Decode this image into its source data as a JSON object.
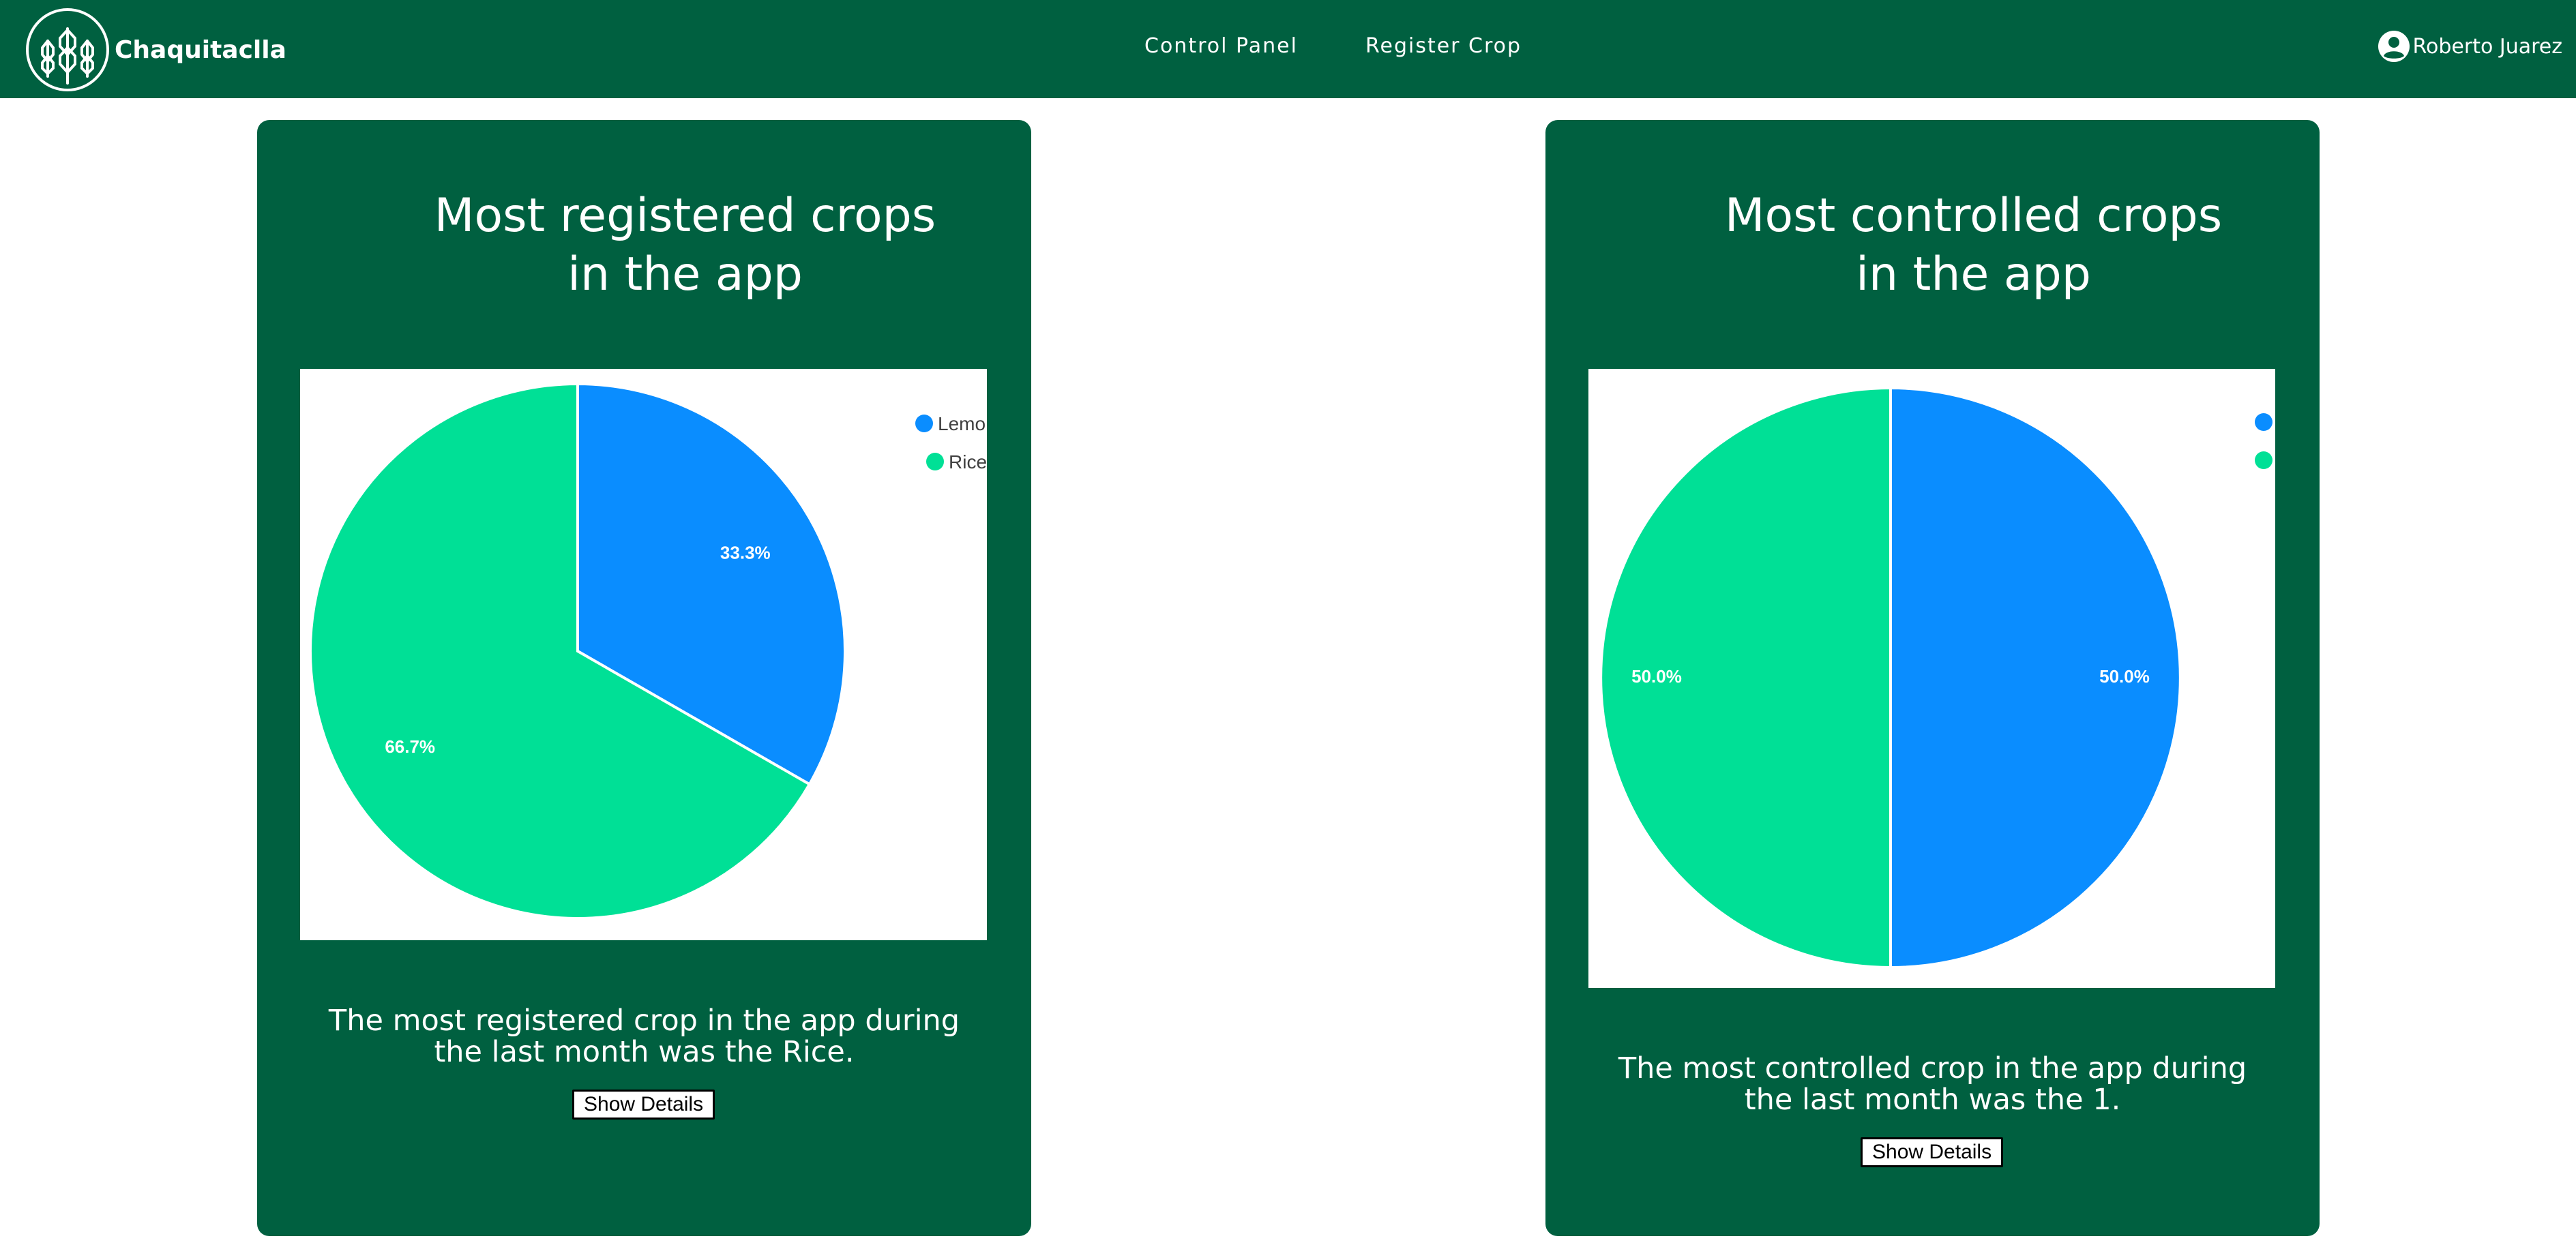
{
  "navbar": {
    "brand": "Chaquitaclla",
    "links": [
      "Control Panel",
      "Register Crop"
    ],
    "user_name": "Roberto Juarez",
    "icons": {
      "logo": "wheat-logo-icon",
      "user": "user-circle-icon"
    }
  },
  "cards": [
    {
      "title_line1": "Most registered crops",
      "title_line2": "in the app",
      "desc_line1": "The most registered crop in the app during",
      "desc_line2": "the last month was the Rice.",
      "button": "Show Details",
      "legend": [
        "Lemo",
        "Rice"
      ]
    },
    {
      "title_line1": "Most controlled crops",
      "title_line2": "in the app",
      "desc_line1": "The most controlled crop in the app during",
      "desc_line2": "the last month was the 1.",
      "button": "Show Details",
      "legend": [
        "",
        ""
      ]
    }
  ],
  "colors": {
    "header_bg": "#006040",
    "card_bg": "#006040",
    "series_blue": "#0a8dff",
    "series_green": "#00e096"
  },
  "chart_data": [
    {
      "type": "pie",
      "title": "",
      "categories": [
        "Lemo",
        "Rice"
      ],
      "values": [
        33.3,
        66.7
      ],
      "labels": [
        "33.3%",
        "66.7%"
      ],
      "colors": [
        "#0a8dff",
        "#00e096"
      ],
      "legend": "top-right"
    },
    {
      "type": "pie",
      "title": "",
      "categories": [
        "",
        ""
      ],
      "values": [
        50.0,
        50.0
      ],
      "labels": [
        "50.0%",
        "50.0%"
      ],
      "colors": [
        "#0a8dff",
        "#00e096"
      ],
      "legend": "top-right"
    }
  ]
}
